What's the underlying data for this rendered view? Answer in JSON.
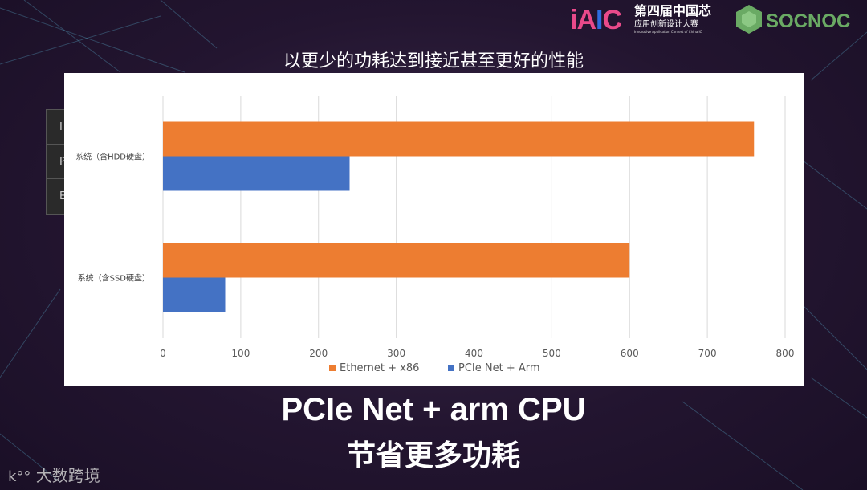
{
  "header": {
    "iaic_mark": "iAIC",
    "iaic_title": "第四届中国芯",
    "iaic_subtitle": "应用创新设计大赛",
    "iaic_english": "Innovative Application Contest of China IC",
    "soc_logo": "SOCNOC"
  },
  "caption_top": "以更少的功耗达到接近甚至更好的性能",
  "side_table_rows": [
    "I",
    "P",
    "E"
  ],
  "chart_data": {
    "type": "bar",
    "orientation": "horizontal",
    "categories": [
      "系统（含HDD硬盘）",
      "系统（含SSD硬盘）"
    ],
    "series": [
      {
        "name": "Ethernet + x86",
        "color": "#ed7d31",
        "values": [
          760,
          600
        ]
      },
      {
        "name": "PCIe Net + Arm",
        "color": "#4472c4",
        "values": [
          240,
          80
        ]
      }
    ],
    "xlim": [
      0,
      800
    ],
    "xticks": [
      0,
      100,
      200,
      300,
      400,
      500,
      600,
      700,
      800
    ],
    "grid": true,
    "legend_position": "bottom"
  },
  "bottom_title": {
    "line1": "PCIe Net + arm CPU",
    "line2": "节省更多功耗"
  },
  "watermark": "大数跨境"
}
